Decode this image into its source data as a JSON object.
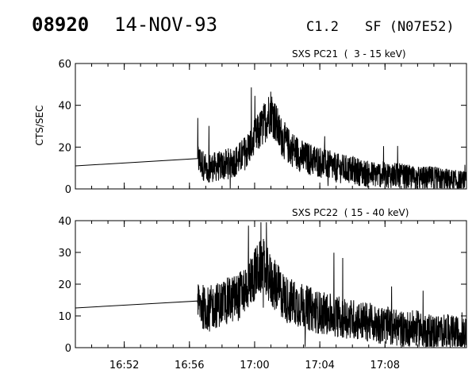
{
  "header": {
    "event_id": "08920",
    "date": "14-NOV-93",
    "flare_class": "C1.2",
    "flare_info": "SF (N07E52)"
  },
  "chart_data": [
    {
      "type": "line",
      "title": "SXS PC21  (  3 - 15 keV)",
      "ylabel": "CTS/SEC",
      "xlabel": "",
      "ylim": [
        0,
        60
      ],
      "yticks": [
        0,
        20,
        40,
        60
      ],
      "xlim": [
        "16:49",
        "17:13"
      ],
      "grid": false,
      "series": [
        {
          "x": [
            "16:49",
            "16:50",
            "16:52",
            "16:54",
            "16:56",
            "16:56.5",
            "16:57",
            "16:58",
            "16:59",
            "16:59.5",
            "17:00",
            "17:00.5",
            "17:01",
            "17:01.5",
            "17:02",
            "17:03",
            "17:04",
            "17:05",
            "17:06",
            "17:07",
            "17:08",
            "17:09",
            "17:10",
            "17:11",
            "17:12",
            "17:13"
          ],
          "values": [
            11,
            11.5,
            12,
            13,
            14,
            14.5,
            10,
            11,
            14,
            18,
            24,
            30,
            38,
            27,
            21,
            15,
            13,
            10,
            9,
            7,
            7,
            6,
            5,
            5,
            4,
            3
          ]
        }
      ]
    },
    {
      "type": "line",
      "title": "SXS PC22  ( 15 - 40 keV)",
      "ylabel": "",
      "xlabel": "",
      "ylim": [
        0,
        40
      ],
      "yticks": [
        0,
        10,
        20,
        30,
        40
      ],
      "xlim": [
        "16:49",
        "17:13"
      ],
      "xticks": [
        "16:52",
        "16:56",
        "17:00",
        "17:04",
        "17:08"
      ],
      "grid": false,
      "series": [
        {
          "x": [
            "16:49",
            "16:50",
            "16:52",
            "16:54",
            "16:56",
            "16:56.5",
            "16:57",
            "16:58",
            "16:59",
            "16:59.5",
            "17:00",
            "17:00.5",
            "17:01",
            "17:01.5",
            "17:02",
            "17:03",
            "17:04",
            "17:05",
            "17:06",
            "17:07",
            "17:08",
            "17:09",
            "17:10",
            "17:11",
            "17:12",
            "17:13"
          ],
          "values": [
            12.5,
            13,
            13.5,
            14,
            14.5,
            14.7,
            12,
            14,
            16,
            19,
            23,
            26,
            21,
            18,
            15,
            13,
            11,
            10,
            9,
            8,
            7,
            6,
            6,
            5,
            5,
            4
          ]
        }
      ]
    }
  ]
}
